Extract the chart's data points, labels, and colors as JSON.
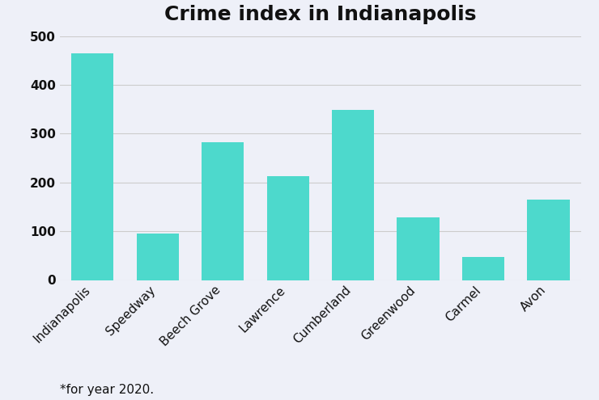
{
  "title": "Crime index in Indianapolis",
  "categories": [
    "Indianapolis",
    "Speedway",
    "Beech Grove",
    "Lawrence",
    "Cumberland",
    "Greenwood",
    "Carmel",
    "Avon"
  ],
  "values": [
    465,
    96,
    282,
    213,
    348,
    128,
    48,
    165
  ],
  "bar_color": "#4DD9CC",
  "background_color": "#eef0f8",
  "ylim": [
    0,
    500
  ],
  "yticks": [
    0,
    100,
    200,
    300,
    400,
    500
  ],
  "grid_color": "#cccccc",
  "title_fontsize": 18,
  "tick_fontsize": 11,
  "footnote": "*for year 2020.",
  "footnote_fontsize": 11
}
